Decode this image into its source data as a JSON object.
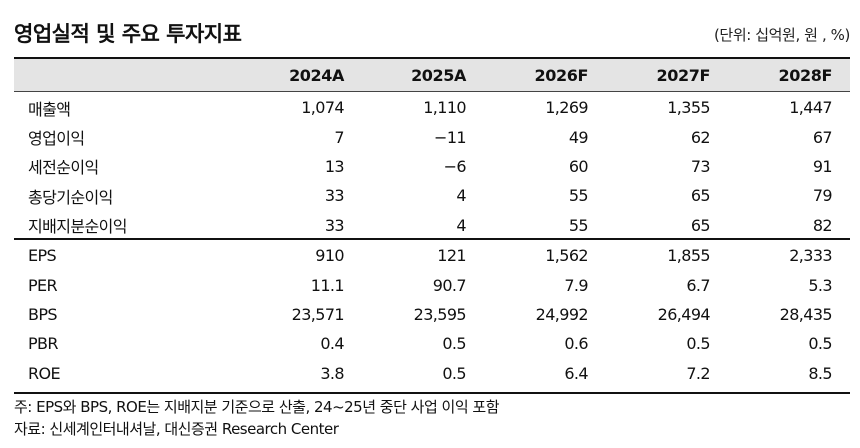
{
  "title": "영업실적 및 주요 투자지표",
  "unit": "(단위: 십억원, 원 , %)",
  "columns": [
    "2024A",
    "2025A",
    "2026F",
    "2027F",
    "2028F"
  ],
  "group1": [
    {
      "label": "매출액",
      "values": [
        "1,074",
        "1,110",
        "1,269",
        "1,355",
        "1,447"
      ]
    },
    {
      "label": "영업이익",
      "values": [
        "7",
        "−11",
        "49",
        "62",
        "67"
      ]
    },
    {
      "label": "세전순이익",
      "values": [
        "13",
        "−6",
        "60",
        "73",
        "91"
      ]
    },
    {
      "label": "총당기순이익",
      "values": [
        "33",
        "4",
        "55",
        "65",
        "79"
      ]
    },
    {
      "label": "지배지분순이익",
      "values": [
        "33",
        "4",
        "55",
        "65",
        "82"
      ]
    }
  ],
  "group2": [
    {
      "label": "EPS",
      "values": [
        "910",
        "121",
        "1,562",
        "1,855",
        "2,333"
      ]
    },
    {
      "label": "PER",
      "values": [
        "11.1",
        "90.7",
        "7.9",
        "6.7",
        "5.3"
      ]
    },
    {
      "label": "BPS",
      "values": [
        "23,571",
        "23,595",
        "24,992",
        "26,494",
        "28,435"
      ]
    },
    {
      "label": "PBR",
      "values": [
        "0.4",
        "0.5",
        "0.6",
        "0.5",
        "0.5"
      ]
    },
    {
      "label": "ROE",
      "values": [
        "3.8",
        "0.5",
        "6.4",
        "7.2",
        "8.5"
      ]
    }
  ],
  "notes": {
    "footnote": "주: EPS와 BPS, ROE는 지배지분 기준으로 산출, 24~25년 중단 사업 이익 포함",
    "source": "자료: 신세계인터내셔날, 대신증권 Research Center"
  }
}
